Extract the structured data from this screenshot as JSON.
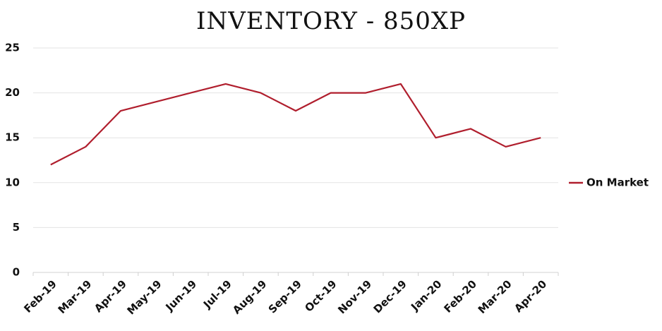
{
  "chart_data": {
    "type": "line",
    "title": "INVENTORY - 850XP",
    "categories": [
      "Feb-19",
      "Mar-19",
      "Apr-19",
      "May-19",
      "Jun-19",
      "Jul-19",
      "Aug-19",
      "Sep-19",
      "Oct-19",
      "Nov-19",
      "Dec-19",
      "Jan-20",
      "Feb-20",
      "Mar-20",
      "Apr-20"
    ],
    "series": [
      {
        "name": "On Market",
        "color": "#b01e2d",
        "values": [
          12,
          14,
          18,
          19,
          20,
          21,
          20,
          18,
          20,
          20,
          21,
          15,
          16,
          14,
          15
        ]
      }
    ],
    "ylim": [
      0,
      25
    ],
    "yticks": [
      0,
      5,
      10,
      15,
      20,
      25
    ],
    "grid": true,
    "legend": "right"
  }
}
